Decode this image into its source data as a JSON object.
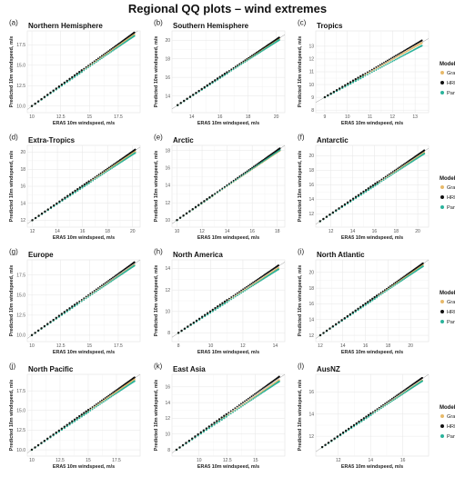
{
  "figure": {
    "title": "Regional QQ plots – wind extremes",
    "xlabel": "ERA5 10m windspeed, m/s",
    "ylabel": "Predicted 10m windspeed, m/s"
  },
  "legend": {
    "title": "Model",
    "entries": [
      {
        "name": "Graphcast",
        "color": "#E7B96A"
      },
      {
        "name": "HRES",
        "color": "#111111"
      },
      {
        "name": "Pangu",
        "color": "#2BB39B"
      }
    ],
    "placement": "right of panels c, f, i, l"
  },
  "chart_data": [
    {
      "type": "scatter",
      "panel_label": "(a)",
      "title": "Northern Hemisphere",
      "xlim": [
        9.6,
        19.4
      ],
      "ylim": [
        9.2,
        19.2
      ],
      "xticks": [
        10,
        12.5,
        15,
        17.5
      ],
      "yticks": [
        10.0,
        12.5,
        15.0,
        17.5
      ],
      "tick_style": "one_decimal",
      "x_range": [
        10,
        18.9
      ],
      "gap_start": 0.5,
      "scale": {
        "Graphcast": 0.985,
        "HRES": 1.01,
        "Pangu": 0.965
      },
      "grid": true
    },
    {
      "type": "scatter",
      "panel_label": "(b)",
      "title": "Southern Hemisphere",
      "xlim": [
        12.6,
        20.6
      ],
      "ylim": [
        12.2,
        21.0
      ],
      "xticks": [
        14,
        16,
        18,
        20
      ],
      "yticks": [
        14,
        16,
        18,
        20
      ],
      "tick_style": "int",
      "x_range": [
        13,
        20.2
      ],
      "gap_start": 0.5,
      "scale": {
        "Graphcast": 0.99,
        "HRES": 1.01,
        "Pangu": 0.975
      },
      "grid": true
    },
    {
      "type": "scatter",
      "panel_label": "(c)",
      "title": "Tropics",
      "xlim": [
        8.6,
        13.6
      ],
      "ylim": [
        7.8,
        14.2
      ],
      "xticks": [
        9,
        10,
        11,
        12,
        13
      ],
      "yticks": [
        8,
        9,
        10,
        11,
        12,
        13
      ],
      "tick_style": "int",
      "x_range": [
        9,
        13.3
      ],
      "gap_start": 0.4,
      "scale": {
        "Graphcast": 0.99,
        "HRES": 1.03,
        "Pangu": 0.94
      },
      "grid": true
    },
    {
      "type": "scatter",
      "panel_label": "(d)",
      "title": "Extra-Tropics",
      "xlim": [
        11.6,
        20.6
      ],
      "ylim": [
        11.2,
        20.8
      ],
      "xticks": [
        12,
        14,
        16,
        18,
        20
      ],
      "yticks": [
        12,
        14,
        16,
        18,
        20
      ],
      "tick_style": "int",
      "x_range": [
        12,
        20.2
      ],
      "gap_start": 0.55,
      "scale": {
        "Graphcast": 0.985,
        "HRES": 1.01,
        "Pangu": 0.965
      },
      "grid": true
    },
    {
      "type": "scatter",
      "panel_label": "(e)",
      "title": "Arctic",
      "xlim": [
        9.6,
        18.6
      ],
      "ylim": [
        9.2,
        18.6
      ],
      "xticks": [
        10,
        12,
        14,
        16,
        18
      ],
      "yticks": [
        10,
        12,
        14,
        16,
        18
      ],
      "tick_style": "int",
      "x_range": [
        10,
        18.2
      ],
      "gap_start": 0.35,
      "scale": {
        "Graphcast": 0.975,
        "HRES": 1.005,
        "Pangu": 0.985
      },
      "grid": true
    },
    {
      "type": "scatter",
      "panel_label": "(f)",
      "title": "Antarctic",
      "xlim": [
        10.6,
        21.0
      ],
      "ylim": [
        10.2,
        21.4
      ],
      "xticks": [
        12,
        14,
        16,
        18,
        20
      ],
      "yticks": [
        12,
        14,
        16,
        18,
        20
      ],
      "tick_style": "int",
      "x_range": [
        11,
        20.6
      ],
      "gap_start": 0.55,
      "scale": {
        "Graphcast": 0.98,
        "HRES": 1.01,
        "Pangu": 0.965
      },
      "grid": true
    },
    {
      "type": "scatter",
      "panel_label": "(g)",
      "title": "Europe",
      "xlim": [
        9.6,
        19.4
      ],
      "ylim": [
        9.2,
        19.4
      ],
      "xticks": [
        10,
        12.5,
        15,
        17.5
      ],
      "yticks": [
        10.0,
        12.5,
        15.0,
        17.5
      ],
      "tick_style": "one_decimal",
      "x_range": [
        10,
        18.9
      ],
      "gap_start": 0.45,
      "scale": {
        "Graphcast": 0.985,
        "HRES": 1.02,
        "Pangu": 0.975
      },
      "grid": true
    },
    {
      "type": "scatter",
      "panel_label": "(h)",
      "title": "North America",
      "xlim": [
        7.6,
        14.6
      ],
      "ylim": [
        7.2,
        14.8
      ],
      "xticks": [
        8,
        10,
        12,
        14
      ],
      "yticks": [
        8,
        10,
        12,
        14
      ],
      "tick_style": "int",
      "x_range": [
        8,
        14.2
      ],
      "gap_start": 0.5,
      "scale": {
        "Graphcast": 0.975,
        "HRES": 1.01,
        "Pangu": 0.955
      },
      "grid": true
    },
    {
      "type": "scatter",
      "panel_label": "(i)",
      "title": "North Atlantic",
      "xlim": [
        11.6,
        21.6
      ],
      "ylim": [
        11.2,
        21.6
      ],
      "xticks": [
        12,
        14,
        16,
        18,
        20
      ],
      "yticks": [
        12,
        14,
        16,
        18,
        20
      ],
      "tick_style": "int",
      "x_range": [
        12,
        21.1
      ],
      "gap_start": 0.55,
      "scale": {
        "Graphcast": 0.985,
        "HRES": 1.005,
        "Pangu": 0.965
      },
      "grid": true
    },
    {
      "type": "scatter",
      "panel_label": "(j)",
      "title": "North Pacific",
      "xlim": [
        9.6,
        19.6
      ],
      "ylim": [
        9.2,
        19.6
      ],
      "xticks": [
        10,
        12.5,
        15,
        17.5
      ],
      "yticks": [
        10.0,
        12.5,
        15.0,
        17.5
      ],
      "tick_style": "one_decimal",
      "x_range": [
        10,
        19.1
      ],
      "gap_start": 0.55,
      "scale": {
        "Graphcast": 0.985,
        "HRES": 1.01,
        "Pangu": 0.96
      },
      "grid": true
    },
    {
      "type": "scatter",
      "panel_label": "(k)",
      "title": "East Asia",
      "xlim": [
        7.6,
        17.6
      ],
      "ylim": [
        7.2,
        17.6
      ],
      "xticks": [
        10,
        12.5,
        15
      ],
      "yticks": [
        8,
        10,
        12,
        14,
        16
      ],
      "tick_style": "axis_mixed",
      "x_range": [
        8,
        17.1
      ],
      "gap_start": 0.5,
      "scale": {
        "Graphcast": 0.975,
        "HRES": 1.02,
        "Pangu": 0.955
      },
      "grid": true
    },
    {
      "type": "scatter",
      "panel_label": "(l)",
      "title": "AusNZ",
      "xlim": [
        10.6,
        17.6
      ],
      "ylim": [
        10.2,
        17.6
      ],
      "xticks": [
        12,
        14,
        16
      ],
      "yticks": [
        12,
        14,
        16
      ],
      "tick_style": "int",
      "x_range": [
        11,
        17.2
      ],
      "gap_start": 0.5,
      "scale": {
        "Graphcast": 0.975,
        "HRES": 1.01,
        "Pangu": 0.965
      },
      "grid": true
    }
  ]
}
